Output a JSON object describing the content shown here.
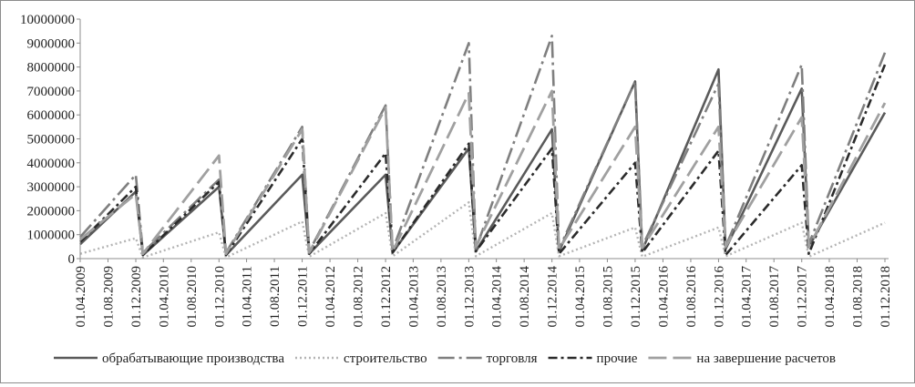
{
  "chart_data": {
    "type": "line",
    "title": "",
    "xlabel": "",
    "ylabel": "",
    "ylim": [
      0,
      10000000
    ],
    "yticks": [
      0,
      1000000,
      2000000,
      3000000,
      4000000,
      5000000,
      6000000,
      7000000,
      8000000,
      9000000,
      10000000
    ],
    "ytick_labels": [
      "0",
      "1000000",
      "2000000",
      "3000000",
      "4000000",
      "5000000",
      "6000000",
      "7000000",
      "8000000",
      "9000000",
      "10000000"
    ],
    "x_start": "2009-04-01",
    "x_end": "2018-12-01",
    "categories": [
      "01.04.2009",
      "01.08.2009",
      "01.12.2009",
      "01.04.2010",
      "01.08.2010",
      "01.12.2010",
      "01.04.2011",
      "01.08.2011",
      "01.12.2011",
      "01.04.2012",
      "01.08.2012",
      "01.12.2012",
      "01.04.2013",
      "01.08.2013",
      "01.12.2013",
      "01.04.2014",
      "01.08.2014",
      "01.12.2014",
      "01.04.2015",
      "01.08.2015",
      "01.12.2015",
      "01.04.2016",
      "01.08.2016",
      "01.12.2016",
      "01.04.2017",
      "01.08.2017",
      "01.12.2017",
      "01.04.2018",
      "01.08.2018",
      "01.12.2018"
    ],
    "grid": false,
    "legend_position": "bottom",
    "series": [
      {
        "name": "обрабатывающие производства",
        "color": "#5a5a5a",
        "dash": "",
        "width": 2.6,
        "points": [
          [
            "2009-04-01",
            600000
          ],
          [
            "2009-12-01",
            2800000
          ],
          [
            "2010-01-01",
            150000
          ],
          [
            "2010-12-01",
            3000000
          ],
          [
            "2011-01-01",
            150000
          ],
          [
            "2011-12-01",
            3500000
          ],
          [
            "2012-01-01",
            200000
          ],
          [
            "2012-12-01",
            3500000
          ],
          [
            "2013-01-01",
            250000
          ],
          [
            "2013-12-01",
            4600000
          ],
          [
            "2014-01-01",
            300000
          ],
          [
            "2014-12-01",
            5400000
          ],
          [
            "2015-01-01",
            300000
          ],
          [
            "2015-12-01",
            7400000
          ],
          [
            "2016-01-01",
            350000
          ],
          [
            "2016-12-01",
            7900000
          ],
          [
            "2017-01-01",
            400000
          ],
          [
            "2017-12-01",
            7100000
          ],
          [
            "2018-01-01",
            500000
          ],
          [
            "2018-12-01",
            6100000
          ]
        ]
      },
      {
        "name": "строительство",
        "color": "#b4b4b4",
        "dash": "2,3",
        "width": 2.4,
        "points": [
          [
            "2009-04-01",
            200000
          ],
          [
            "2009-12-01",
            850000
          ],
          [
            "2010-01-01",
            50000
          ],
          [
            "2010-12-01",
            1100000
          ],
          [
            "2011-01-01",
            50000
          ],
          [
            "2011-12-01",
            1550000
          ],
          [
            "2012-01-01",
            80000
          ],
          [
            "2012-12-01",
            1900000
          ],
          [
            "2013-01-01",
            100000
          ],
          [
            "2013-12-01",
            2350000
          ],
          [
            "2014-01-01",
            100000
          ],
          [
            "2014-12-01",
            1900000
          ],
          [
            "2015-01-01",
            100000
          ],
          [
            "2015-12-01",
            1300000
          ],
          [
            "2016-01-01",
            80000
          ],
          [
            "2016-12-01",
            1300000
          ],
          [
            "2017-01-01",
            100000
          ],
          [
            "2017-12-01",
            1500000
          ],
          [
            "2018-01-01",
            80000
          ],
          [
            "2018-12-01",
            1500000
          ]
        ]
      },
      {
        "name": "торговля",
        "color": "#7f7f7f",
        "dash": "18,5,3,5",
        "width": 2.6,
        "points": [
          [
            "2009-04-01",
            900000
          ],
          [
            "2009-12-01",
            3500000
          ],
          [
            "2010-01-01",
            250000
          ],
          [
            "2010-12-01",
            3300000
          ],
          [
            "2011-01-01",
            250000
          ],
          [
            "2011-12-01",
            5500000
          ],
          [
            "2012-01-01",
            300000
          ],
          [
            "2012-12-01",
            6400000
          ],
          [
            "2013-01-01",
            350000
          ],
          [
            "2013-12-01",
            9000000
          ],
          [
            "2014-01-01",
            400000
          ],
          [
            "2014-12-01",
            9300000
          ],
          [
            "2015-01-01",
            400000
          ],
          [
            "2015-12-01",
            7400000
          ],
          [
            "2016-01-01",
            500000
          ],
          [
            "2016-12-01",
            7300000
          ],
          [
            "2017-01-01",
            500000
          ],
          [
            "2017-12-01",
            8100000
          ],
          [
            "2018-01-01",
            600000
          ],
          [
            "2018-12-01",
            8600000
          ]
        ]
      },
      {
        "name": "прочие",
        "color": "#2b2b2b",
        "dash": "10,4,3,4",
        "width": 2.6,
        "points": [
          [
            "2009-04-01",
            700000
          ],
          [
            "2009-12-01",
            3000000
          ],
          [
            "2010-01-01",
            150000
          ],
          [
            "2010-12-01",
            3200000
          ],
          [
            "2011-01-01",
            150000
          ],
          [
            "2011-12-01",
            5000000
          ],
          [
            "2012-01-01",
            200000
          ],
          [
            "2012-12-01",
            4400000
          ],
          [
            "2013-01-01",
            250000
          ],
          [
            "2013-12-01",
            4800000
          ],
          [
            "2014-01-01",
            300000
          ],
          [
            "2014-12-01",
            4600000
          ],
          [
            "2015-01-01",
            200000
          ],
          [
            "2015-12-01",
            4000000
          ],
          [
            "2016-01-01",
            250000
          ],
          [
            "2016-12-01",
            4500000
          ],
          [
            "2017-01-01",
            150000
          ],
          [
            "2017-12-01",
            3900000
          ],
          [
            "2018-01-01",
            200000
          ],
          [
            "2018-12-01",
            8100000
          ]
        ]
      },
      {
        "name": "на завершение расчетов",
        "color": "#a0a0a0",
        "dash": "20,7",
        "width": 2.8,
        "points": [
          [
            "2009-04-01",
            800000
          ],
          [
            "2009-12-01",
            2700000
          ],
          [
            "2010-01-01",
            200000
          ],
          [
            "2010-12-01",
            4300000
          ],
          [
            "2011-01-01",
            200000
          ],
          [
            "2011-12-01",
            5400000
          ],
          [
            "2012-01-01",
            250000
          ],
          [
            "2012-12-01",
            6300000
          ],
          [
            "2013-01-01",
            300000
          ],
          [
            "2013-12-01",
            6900000
          ],
          [
            "2014-01-01",
            500000
          ],
          [
            "2014-12-01",
            7000000
          ],
          [
            "2015-01-01",
            400000
          ],
          [
            "2015-12-01",
            5500000
          ],
          [
            "2016-01-01",
            450000
          ],
          [
            "2016-12-01",
            5500000
          ],
          [
            "2017-01-01",
            500000
          ],
          [
            "2017-12-01",
            5900000
          ],
          [
            "2018-01-01",
            500000
          ],
          [
            "2018-12-01",
            6500000
          ]
        ]
      }
    ]
  }
}
